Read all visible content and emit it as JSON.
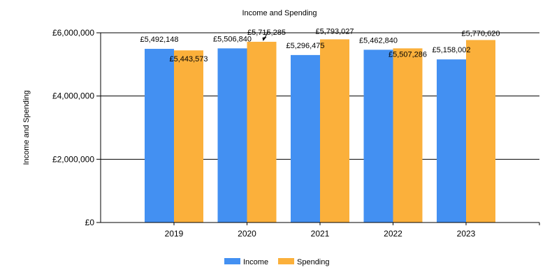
{
  "chart_data": {
    "type": "bar",
    "title": "Income and Spending",
    "xlabel": "",
    "ylabel": "Income and Spending",
    "categories": [
      "2019",
      "2020",
      "2021",
      "2022",
      "2023"
    ],
    "series": [
      {
        "name": "Income",
        "color": "#4390f2",
        "values": [
          5492148,
          5506840,
          5296475,
          5462840,
          5158002
        ]
      },
      {
        "name": "Spending",
        "color": "#fbb03b",
        "values": [
          5443573,
          5715285,
          5793027,
          5507286,
          5770620
        ]
      }
    ],
    "data_labels": [
      [
        "£5,492,148",
        "£5,506,840",
        "£5,296,475",
        "£5,462,840",
        "£5,158,002"
      ],
      [
        "£5,443,573",
        "£5,715,285",
        "£5,793,027",
        "£5,507,286",
        "£5,770,620"
      ]
    ],
    "yticks": [
      0,
      2000000,
      4000000,
      6000000
    ],
    "ytick_labels": [
      "£0",
      "£2,000,000",
      "£4,000,000",
      "£6,000,000"
    ],
    "ylim": [
      0,
      6000000
    ],
    "grid": true,
    "legend_position": "bottom"
  }
}
